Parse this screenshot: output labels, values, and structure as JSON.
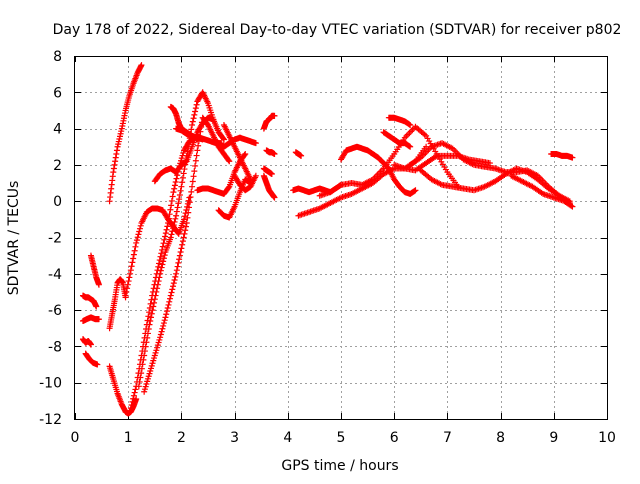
{
  "chart_data": {
    "type": "scatter",
    "title": "Day 178 of 2022, Sidereal Day-to-day VTEC variation (SDTVAR) for receiver p802",
    "xlabel": "GPS time / hours",
    "ylabel": "SDTVAR / TECUs",
    "xlim": [
      0,
      10
    ],
    "ylim": [
      -12,
      8
    ],
    "xticks": [
      0,
      1,
      2,
      3,
      4,
      5,
      6,
      7,
      8,
      9,
      10
    ],
    "yticks": [
      -12,
      -10,
      -8,
      -6,
      -4,
      -2,
      0,
      2,
      4,
      6,
      8
    ],
    "grid": true,
    "legend": "none",
    "marker": "+",
    "color": "#ff0000",
    "series": [
      {
        "x": [
          0.65,
          0.72,
          0.8,
          0.88,
          0.95,
          1.02,
          1.1,
          1.18,
          1.25
        ],
        "y": [
          0.0,
          1.6,
          3.0,
          4.0,
          5.0,
          5.8,
          6.5,
          7.1,
          7.5
        ]
      },
      {
        "x": [
          0.3,
          0.35,
          0.4,
          0.45
        ],
        "y": [
          -3.0,
          -3.6,
          -4.2,
          -4.6
        ]
      },
      {
        "x": [
          0.15,
          0.2,
          0.25,
          0.3,
          0.35,
          0.4
        ],
        "y": [
          -5.2,
          -5.3,
          -5.3,
          -5.4,
          -5.5,
          -5.8
        ]
      },
      {
        "x": [
          0.15,
          0.22,
          0.3,
          0.38,
          0.45
        ],
        "y": [
          -6.6,
          -6.5,
          -6.4,
          -6.5,
          -6.5
        ]
      },
      {
        "x": [
          0.15,
          0.2,
          0.25,
          0.3
        ],
        "y": [
          -7.6,
          -7.8,
          -7.7,
          -7.9
        ]
      },
      {
        "x": [
          0.2,
          0.27,
          0.34,
          0.42
        ],
        "y": [
          -8.4,
          -8.7,
          -8.9,
          -9.0
        ]
      },
      {
        "x": [
          0.65,
          0.7,
          0.75,
          0.8,
          0.85,
          0.9,
          0.95
        ],
        "y": [
          -7.0,
          -6.2,
          -5.4,
          -4.5,
          -4.3,
          -4.5,
          -5.3
        ]
      },
      {
        "x": [
          0.65,
          0.72,
          0.8,
          0.88,
          0.95,
          1.0,
          1.05,
          1.1,
          1.15
        ],
        "y": [
          -9.1,
          -9.8,
          -10.6,
          -11.2,
          -11.6,
          -11.7,
          -11.6,
          -11.3,
          -10.9
        ]
      },
      {
        "x": [
          0.95,
          1.05,
          1.15,
          1.25,
          1.35,
          1.45,
          1.55,
          1.65,
          1.75,
          1.85,
          1.95,
          2.05,
          2.15
        ],
        "y": [
          -5.2,
          -3.8,
          -2.3,
          -1.2,
          -0.6,
          -0.4,
          -0.4,
          -0.5,
          -1.0,
          -1.4,
          -1.8,
          -1.0,
          0.2
        ]
      },
      {
        "x": [
          1.05,
          1.15,
          1.25,
          1.35,
          1.45,
          1.55,
          1.65,
          1.75,
          1.85,
          1.95,
          2.05,
          2.15,
          2.25,
          2.35,
          2.45,
          2.55,
          2.65,
          2.75
        ],
        "y": [
          -11.4,
          -10.2,
          -8.5,
          -6.8,
          -5.2,
          -3.8,
          -2.5,
          -1.2,
          0.5,
          1.8,
          2.8,
          3.3,
          3.5,
          3.5,
          3.4,
          3.3,
          3.2,
          3.2
        ]
      },
      {
        "x": [
          1.2,
          1.3,
          1.4,
          1.5,
          1.6,
          1.7,
          1.8,
          1.9,
          2.0,
          2.1,
          2.2,
          2.3,
          2.4,
          2.5,
          2.6,
          2.7,
          2.8
        ],
        "y": [
          -10.2,
          -8.5,
          -6.8,
          -5.4,
          -4.0,
          -2.8,
          -2.0,
          -0.8,
          0.8,
          2.5,
          4.2,
          5.5,
          6.0,
          5.4,
          4.5,
          3.8,
          3.4
        ]
      },
      {
        "x": [
          1.3,
          1.4,
          1.5,
          1.6,
          1.7,
          1.8,
          1.9,
          2.0,
          2.1,
          2.2,
          2.3,
          2.4,
          2.5,
          2.6,
          2.7,
          2.8,
          2.9
        ],
        "y": [
          -10.5,
          -9.5,
          -8.5,
          -7.5,
          -6.4,
          -5.2,
          -4.0,
          -2.6,
          -1.2,
          0.8,
          2.8,
          4.6,
          4.2,
          3.6,
          3.0,
          2.6,
          2.2
        ]
      },
      {
        "x": [
          1.5,
          1.6,
          1.7,
          1.8,
          1.9,
          2.0,
          2.1,
          2.2,
          2.3,
          2.4,
          2.5,
          2.6
        ],
        "y": [
          1.1,
          1.5,
          1.7,
          1.8,
          1.6,
          2.0,
          2.2,
          3.0,
          3.8,
          4.3,
          4.6,
          4.5
        ]
      },
      {
        "x": [
          1.8,
          1.85,
          1.9,
          1.95,
          2.0,
          2.1,
          2.2,
          2.3
        ],
        "y": [
          5.2,
          5.1,
          4.8,
          4.3,
          4.0,
          3.8,
          3.6,
          3.4
        ]
      },
      {
        "x": [
          1.9,
          2.0,
          2.1,
          2.2,
          2.3,
          2.4
        ],
        "y": [
          4.0,
          3.9,
          3.7,
          3.6,
          3.5,
          3.4
        ]
      },
      {
        "x": [
          2.3,
          2.4,
          2.5,
          2.6,
          2.7,
          2.8,
          2.9,
          3.0,
          3.1,
          3.2
        ],
        "y": [
          0.6,
          0.7,
          0.7,
          0.6,
          0.5,
          0.4,
          0.8,
          1.6,
          2.2,
          2.6
        ]
      },
      {
        "x": [
          2.7,
          2.8,
          2.9,
          3.0,
          3.1,
          3.2,
          3.3
        ],
        "y": [
          -0.5,
          -0.8,
          -0.9,
          -0.3,
          0.5,
          1.2,
          1.0
        ]
      },
      {
        "x": [
          2.6,
          2.7,
          2.8,
          2.9,
          3.0,
          3.1,
          3.2,
          3.3,
          3.4
        ],
        "y": [
          3.4,
          3.2,
          3.0,
          3.2,
          3.4,
          3.5,
          3.4,
          3.3,
          3.2
        ]
      },
      {
        "x": [
          2.8,
          2.9,
          3.0,
          3.1,
          3.2,
          3.3
        ],
        "y": [
          4.2,
          3.6,
          3.0,
          2.4,
          1.8,
          1.2
        ]
      },
      {
        "x": [
          3.0,
          3.1,
          3.2,
          3.3,
          3.4
        ],
        "y": [
          1.4,
          0.9,
          0.6,
          0.8,
          1.4
        ]
      },
      {
        "x": [
          3.55,
          3.6,
          3.65,
          3.7,
          3.75
        ],
        "y": [
          4.0,
          4.4,
          4.5,
          4.7,
          4.7
        ]
      },
      {
        "x": [
          3.55,
          3.6,
          3.65,
          3.7,
          3.75
        ],
        "y": [
          1.4,
          1.0,
          0.6,
          0.4,
          0.2
        ]
      },
      {
        "x": [
          3.6,
          3.65,
          3.7,
          3.75
        ],
        "y": [
          2.8,
          2.7,
          2.7,
          2.6
        ]
      },
      {
        "x": [
          3.55,
          3.6,
          3.65,
          3.7
        ],
        "y": [
          1.8,
          1.7,
          1.6,
          1.5
        ]
      },
      {
        "x": [
          4.1,
          4.2,
          4.3,
          4.4,
          4.5,
          4.6,
          4.7,
          4.8,
          4.9,
          5.0
        ],
        "y": [
          0.6,
          0.7,
          0.6,
          0.5,
          0.6,
          0.7,
          0.6,
          0.5,
          0.7,
          0.9
        ]
      },
      {
        "x": [
          4.15,
          4.2,
          4.25
        ],
        "y": [
          2.7,
          2.6,
          2.5
        ]
      },
      {
        "x": [
          4.2,
          4.4,
          4.6,
          4.8,
          5.0,
          5.2,
          5.4,
          5.6,
          5.8,
          6.0,
          6.2,
          6.4,
          6.6
        ],
        "y": [
          -0.8,
          -0.6,
          -0.4,
          -0.1,
          0.2,
          0.4,
          0.7,
          1.0,
          1.5,
          1.8,
          1.8,
          2.2,
          3.0
        ]
      },
      {
        "x": [
          4.6,
          4.8,
          5.0,
          5.2,
          5.4,
          5.6,
          5.8,
          6.0,
          6.2,
          6.4,
          6.6,
          6.8,
          7.0,
          7.2
        ],
        "y": [
          0.3,
          0.5,
          0.9,
          1.0,
          0.9,
          1.2,
          1.8,
          2.6,
          3.5,
          4.1,
          3.6,
          2.6,
          1.6,
          0.8
        ]
      },
      {
        "x": [
          5.0,
          5.1,
          5.2,
          5.3,
          5.4,
          5.5,
          5.6,
          5.7,
          5.8,
          5.9,
          6.0,
          6.1,
          6.2,
          6.3,
          6.4
        ],
        "y": [
          2.3,
          2.8,
          2.9,
          3.0,
          2.9,
          2.8,
          2.6,
          2.4,
          2.1,
          1.8,
          1.2,
          0.8,
          0.5,
          0.4,
          0.6
        ]
      },
      {
        "x": [
          5.8,
          5.9,
          6.0,
          6.1,
          6.2,
          6.3
        ],
        "y": [
          3.8,
          3.6,
          3.4,
          3.2,
          3.2,
          3.0
        ]
      },
      {
        "x": [
          5.9,
          6.0,
          6.1,
          6.2,
          6.3
        ],
        "y": [
          4.6,
          4.6,
          4.5,
          4.4,
          4.2
        ]
      },
      {
        "x": [
          6.0,
          6.2,
          6.4,
          6.6,
          6.8,
          7.0,
          7.2,
          7.4,
          7.6,
          7.8
        ],
        "y": [
          2.0,
          1.8,
          1.7,
          2.1,
          2.5,
          2.5,
          2.5,
          2.3,
          2.2,
          2.1
        ]
      },
      {
        "x": [
          6.3,
          6.5,
          6.7,
          6.9,
          7.1,
          7.3,
          7.5,
          7.7,
          7.9,
          8.1,
          8.3,
          8.5,
          8.7,
          8.9,
          9.1,
          9.3
        ],
        "y": [
          2.0,
          2.4,
          3.0,
          3.2,
          2.9,
          2.3,
          2.0,
          1.9,
          1.8,
          1.6,
          1.6,
          1.7,
          1.4,
          0.8,
          0.3,
          0.0
        ]
      },
      {
        "x": [
          6.5,
          6.7,
          6.9,
          7.1,
          7.3,
          7.5,
          7.7,
          7.9,
          8.1,
          8.3,
          8.5,
          8.7,
          8.9,
          9.1,
          9.3
        ],
        "y": [
          1.7,
          1.2,
          0.9,
          0.8,
          0.7,
          0.6,
          0.8,
          1.1,
          1.5,
          1.8,
          1.6,
          1.2,
          0.7,
          0.3,
          -0.1
        ]
      },
      {
        "x": [
          8.2,
          8.4,
          8.6,
          8.8,
          9.0,
          9.2,
          9.35
        ],
        "y": [
          1.4,
          1.1,
          0.8,
          0.4,
          0.2,
          0.0,
          -0.3
        ]
      },
      {
        "x": [
          8.95,
          9.05,
          9.15,
          9.25,
          9.35
        ],
        "y": [
          2.6,
          2.6,
          2.5,
          2.5,
          2.4
        ]
      }
    ]
  }
}
